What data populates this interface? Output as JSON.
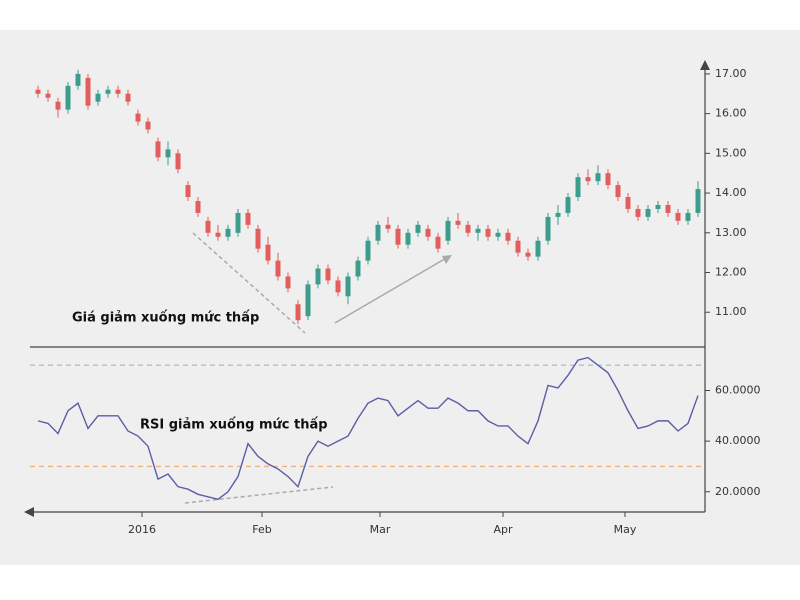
{
  "chart_data": [
    {
      "type": "candlestick",
      "annotation": "Giá giảm xuống mức thấp",
      "xlim": [
        -0.8,
        66.7
      ],
      "ylim": [
        10.2,
        17.4
      ],
      "yticks": [
        {
          "value": 17,
          "label": "17.00"
        },
        {
          "value": 16,
          "label": "16.00"
        },
        {
          "value": 15,
          "label": "15.00"
        },
        {
          "value": 14,
          "label": "14.00"
        },
        {
          "value": 13,
          "label": "13.00"
        },
        {
          "value": 12,
          "label": "12.00"
        },
        {
          "value": 11,
          "label": "11.00"
        }
      ],
      "up_color": "#3d9d8c",
      "down_color": "#e35d5d",
      "open": [
        16.6,
        16.5,
        16.3,
        16.1,
        16.7,
        16.9,
        16.3,
        16.5,
        16.6,
        16.5,
        16.0,
        15.8,
        15.3,
        14.9,
        15.0,
        14.2,
        13.8,
        13.3,
        13.0,
        12.9,
        13.0,
        13.5,
        13.1,
        12.7,
        12.3,
        11.9,
        11.2,
        10.9,
        11.7,
        12.1,
        11.8,
        11.4,
        11.9,
        12.3,
        12.8,
        13.2,
        13.1,
        12.7,
        13.0,
        13.1,
        12.9,
        12.8,
        13.3,
        13.2,
        13.0,
        13.1,
        12.9,
        13.0,
        12.8,
        12.5,
        12.4,
        12.8,
        13.4,
        13.5,
        13.9,
        14.4,
        14.3,
        14.5,
        14.2,
        13.9,
        13.6,
        13.4,
        13.6,
        13.7,
        13.5,
        13.3,
        13.5
      ],
      "high": [
        16.7,
        16.6,
        16.4,
        16.8,
        17.1,
        17.0,
        16.6,
        16.7,
        16.7,
        16.6,
        16.1,
        15.9,
        15.4,
        15.3,
        15.1,
        14.3,
        13.9,
        13.4,
        13.2,
        13.2,
        13.6,
        13.6,
        13.2,
        12.9,
        12.5,
        12.0,
        11.3,
        11.8,
        12.2,
        12.2,
        11.9,
        12.0,
        12.4,
        12.9,
        13.3,
        13.4,
        13.2,
        13.1,
        13.3,
        13.2,
        13.0,
        13.4,
        13.5,
        13.3,
        13.2,
        13.2,
        13.1,
        13.1,
        12.9,
        12.6,
        12.9,
        13.5,
        13.7,
        14.0,
        14.5,
        14.6,
        14.7,
        14.6,
        14.3,
        14.0,
        13.7,
        13.7,
        13.8,
        13.8,
        13.6,
        13.6,
        14.3
      ],
      "low": [
        16.4,
        16.3,
        15.9,
        16.0,
        16.6,
        16.1,
        16.2,
        16.4,
        16.4,
        16.2,
        15.7,
        15.5,
        14.8,
        14.7,
        14.5,
        13.8,
        13.4,
        12.9,
        12.8,
        12.8,
        12.9,
        13.1,
        12.5,
        12.2,
        11.8,
        11.5,
        10.7,
        10.8,
        11.6,
        11.7,
        11.4,
        11.2,
        11.8,
        12.2,
        12.7,
        13.0,
        12.6,
        12.6,
        12.9,
        12.8,
        12.5,
        12.7,
        13.1,
        12.9,
        12.8,
        12.8,
        12.8,
        12.7,
        12.4,
        12.3,
        12.3,
        12.7,
        13.2,
        13.4,
        13.8,
        14.2,
        14.2,
        14.1,
        13.8,
        13.5,
        13.3,
        13.3,
        13.5,
        13.4,
        13.2,
        13.2,
        13.4
      ],
      "close": [
        16.5,
        16.4,
        16.1,
        16.7,
        17.0,
        16.2,
        16.5,
        16.6,
        16.5,
        16.3,
        15.8,
        15.6,
        14.9,
        15.1,
        14.6,
        13.9,
        13.5,
        13.0,
        12.9,
        13.1,
        13.5,
        13.2,
        12.6,
        12.3,
        11.9,
        11.6,
        10.8,
        11.7,
        12.1,
        11.8,
        11.5,
        11.9,
        12.3,
        12.8,
        13.2,
        13.1,
        12.7,
        13.0,
        13.2,
        12.9,
        12.6,
        13.3,
        13.2,
        13.0,
        13.1,
        12.9,
        13.0,
        12.8,
        12.5,
        12.4,
        12.8,
        13.4,
        13.5,
        13.9,
        14.4,
        14.3,
        14.5,
        14.2,
        13.9,
        13.6,
        13.4,
        13.6,
        13.7,
        13.5,
        13.3,
        13.5,
        14.1
      ]
    },
    {
      "type": "line",
      "annotation": "RSI giảm xuống mức thấp",
      "xlim": [
        -0.8,
        66.7
      ],
      "ylim": [
        12,
        76
      ],
      "yticks": [
        {
          "value": 60,
          "label": "60.0000"
        },
        {
          "value": 40,
          "label": "40.0000"
        },
        {
          "value": 20,
          "label": "20.0000"
        }
      ],
      "xticks": [
        {
          "value": 10.4,
          "label": "2016"
        },
        {
          "value": 22.4,
          "label": "Feb"
        },
        {
          "value": 34.2,
          "label": "Mar"
        },
        {
          "value": 46.5,
          "label": "Apr"
        },
        {
          "value": 58.7,
          "label": "May"
        }
      ],
      "reference_lines": [
        {
          "value": 70,
          "color": "#a9c4cf"
        },
        {
          "value": 30,
          "color": "#f0b27a"
        }
      ],
      "color": "#5b5ea6",
      "values": [
        48,
        47,
        43,
        52,
        55,
        45,
        50,
        50,
        50,
        44,
        42,
        38,
        25,
        27,
        22,
        21,
        19,
        18,
        17,
        20,
        26,
        39,
        34,
        31,
        29,
        26,
        22,
        34,
        40,
        38,
        40,
        42,
        49,
        55,
        57,
        56,
        50,
        53,
        56,
        53,
        53,
        57,
        55,
        52,
        52,
        48,
        46,
        46,
        42,
        39,
        48,
        62,
        61,
        66,
        72,
        73,
        70,
        67,
        60,
        52,
        45,
        46,
        48,
        48,
        44,
        47,
        58
      ]
    }
  ]
}
